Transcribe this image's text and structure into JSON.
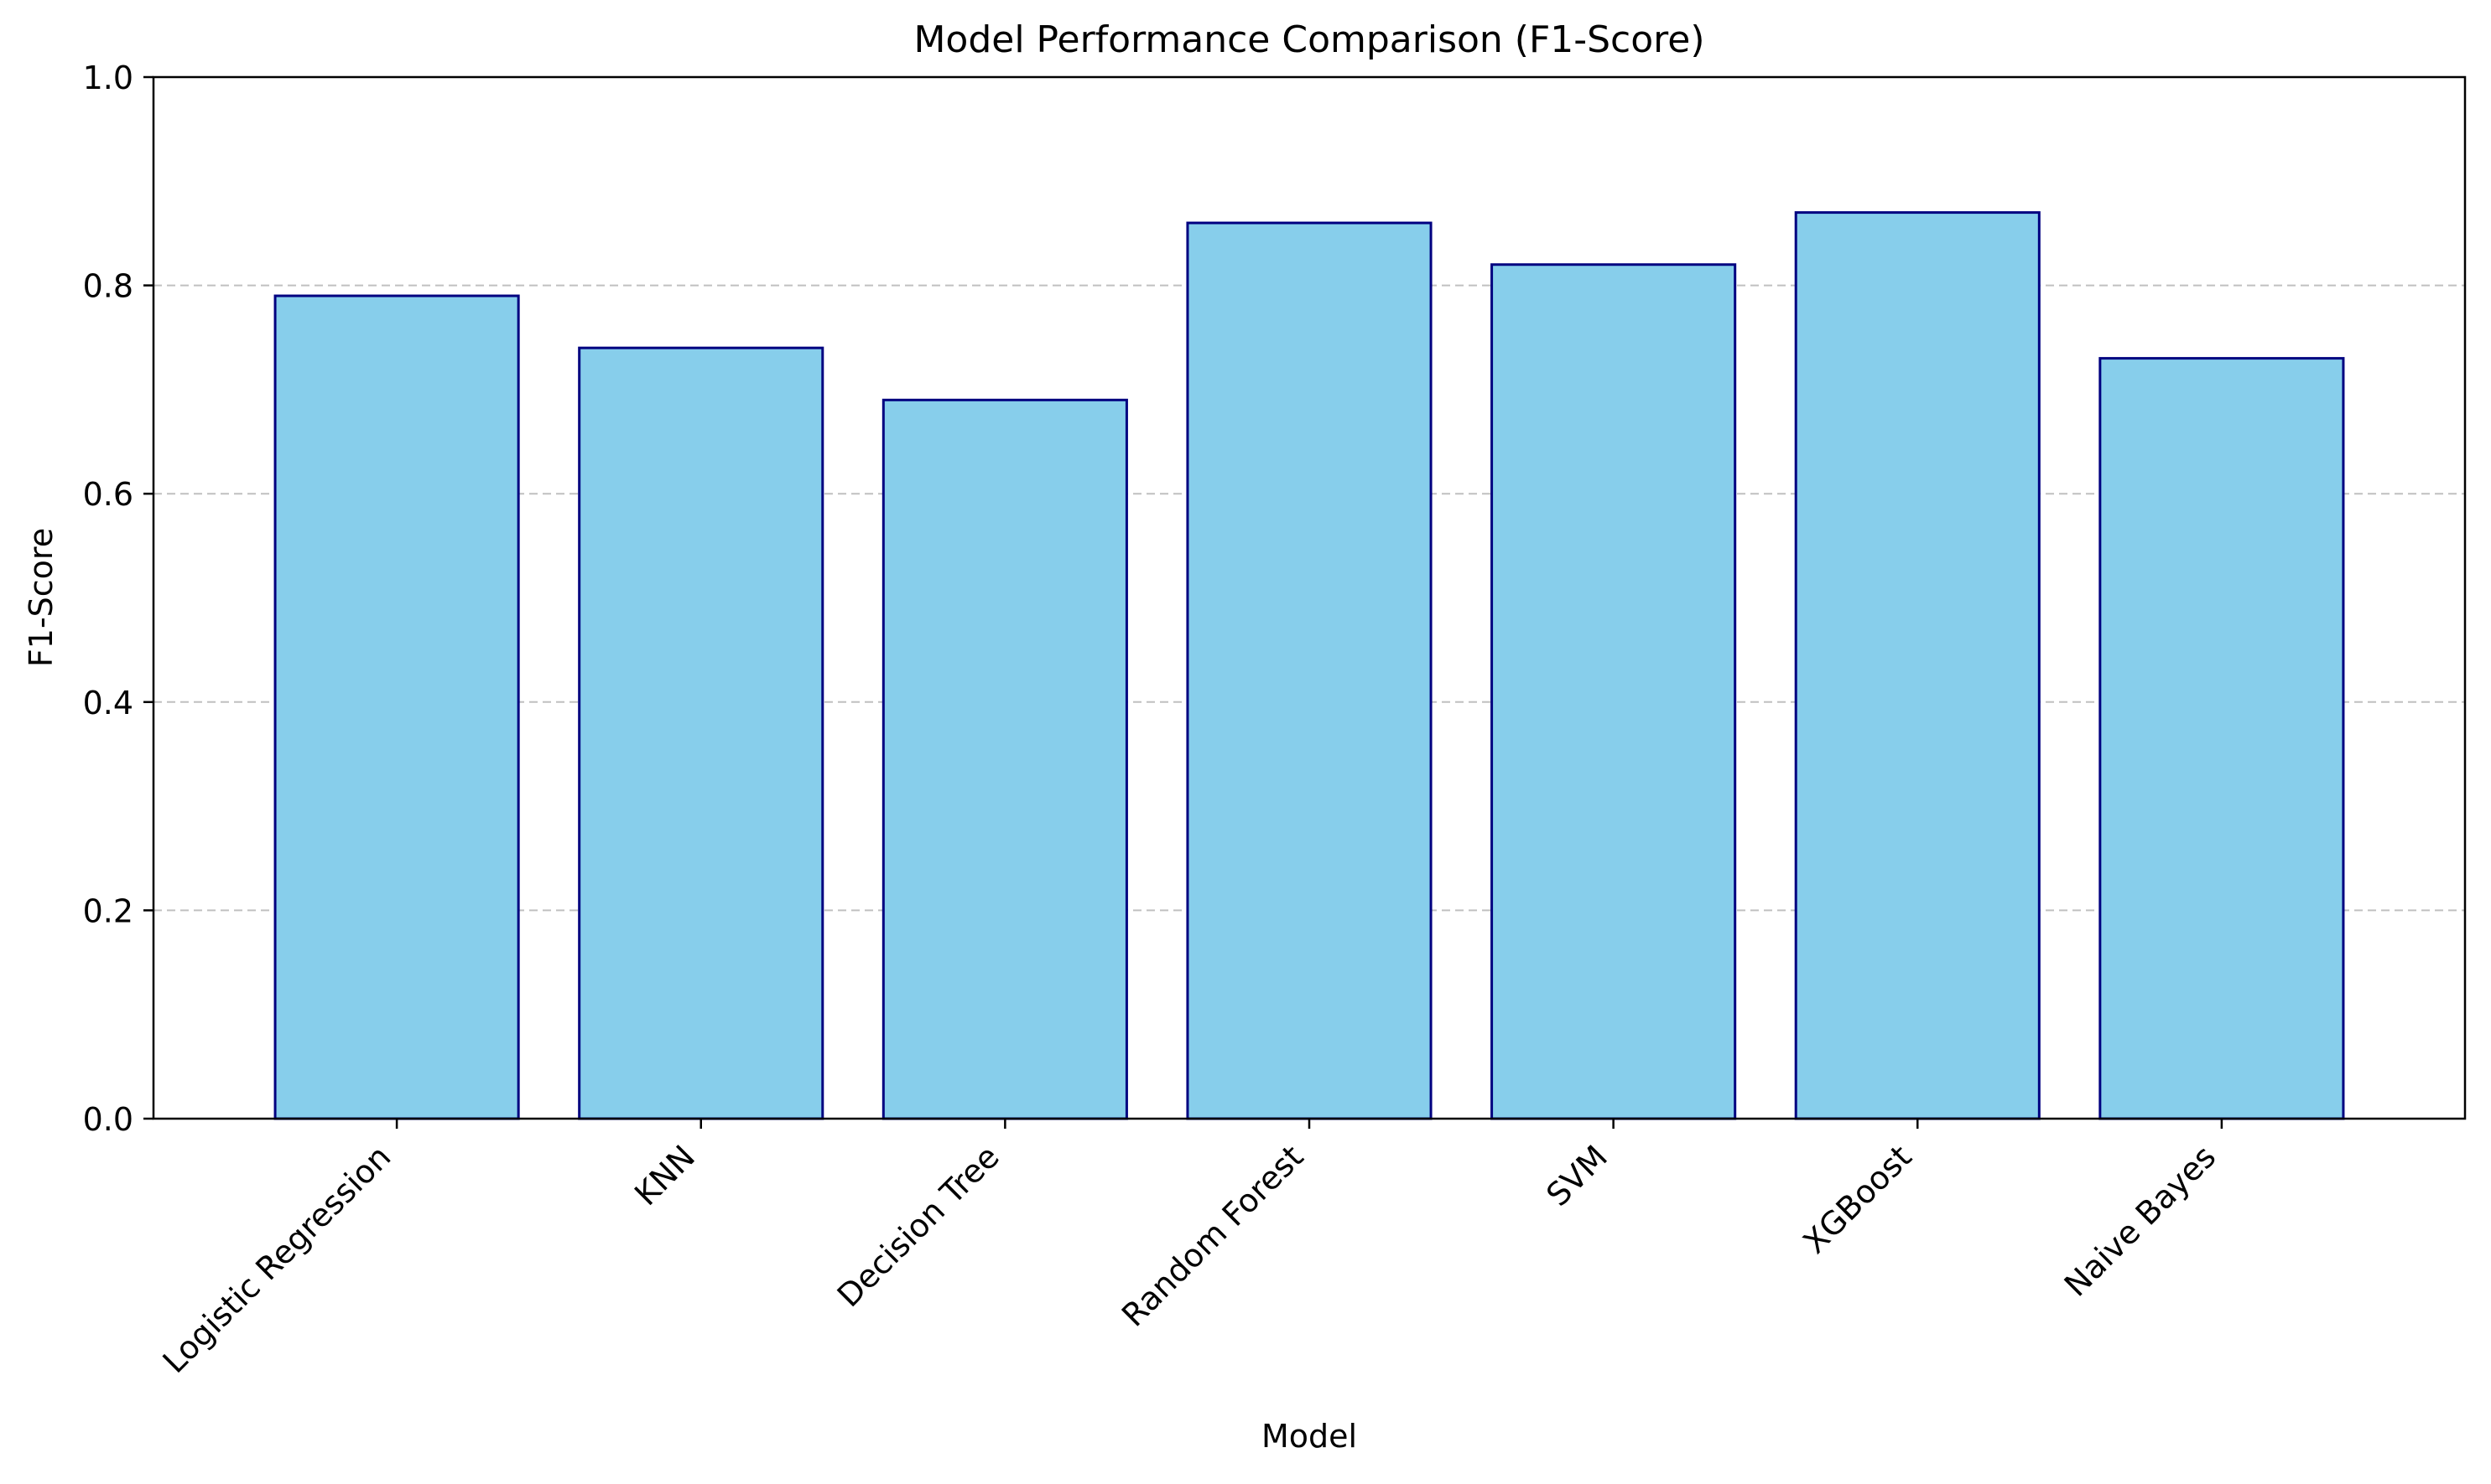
{
  "chart_data": {
    "type": "bar",
    "title": "Model Performance Comparison (F1-Score)",
    "xlabel": "Model",
    "ylabel": "F1-Score",
    "categories": [
      "Logistic Regression",
      "KNN",
      "Decision Tree",
      "Random Forest",
      "SVM",
      "XGBoost",
      "Naive Bayes"
    ],
    "values": [
      0.79,
      0.74,
      0.69,
      0.86,
      0.82,
      0.87,
      0.73
    ],
    "ylim": [
      0,
      1.0
    ],
    "yticks": [
      "0.0",
      "0.2",
      "0.4",
      "0.6",
      "0.8",
      "1.0"
    ],
    "grid": "y-dashed",
    "legend": "none",
    "colors": {
      "bar_fill": "#87CEEB",
      "bar_edge": "#000080",
      "grid": "#c0c0c0",
      "axis": "#000000"
    }
  }
}
